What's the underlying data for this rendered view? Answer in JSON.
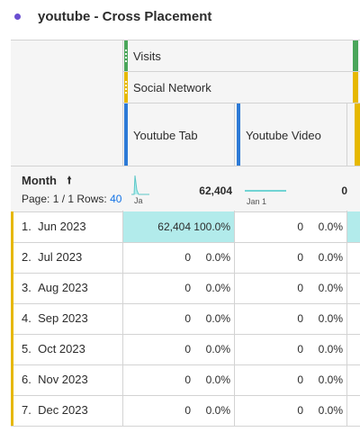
{
  "title": {
    "text": "youtube - Cross Placement",
    "dot_color": "#6a4fd1"
  },
  "header": {
    "metric": {
      "label": "Visits",
      "color": "#4aa55a"
    },
    "dimension": {
      "label": "Social Network",
      "color": "#e6b800"
    },
    "columns": [
      {
        "label": "Youtube Tab",
        "color": "#2d7ad6"
      },
      {
        "label": "Youtube Video",
        "color": "#2d7ad6"
      }
    ]
  },
  "summary": {
    "month_label": "Month",
    "sort_icon": "arrow-up-icon",
    "page_info": "Page: 1 / 1 Rows:",
    "rows_value": "40",
    "col1": {
      "spark_label": "Ja",
      "total": "62,404"
    },
    "col2": {
      "spark_label": "Jan 1",
      "total": "0"
    }
  },
  "rows": [
    {
      "index": "1.",
      "month": "Jun 2023",
      "c1_val": "62,404",
      "c1_pct": "100.0%",
      "c2_val": "0",
      "c2_pct": "0.0%"
    },
    {
      "index": "2.",
      "month": "Jul 2023",
      "c1_val": "0",
      "c1_pct": "0.0%",
      "c2_val": "0",
      "c2_pct": "0.0%"
    },
    {
      "index": "3.",
      "month": "Aug 2023",
      "c1_val": "0",
      "c1_pct": "0.0%",
      "c2_val": "0",
      "c2_pct": "0.0%"
    },
    {
      "index": "4.",
      "month": "Sep 2023",
      "c1_val": "0",
      "c1_pct": "0.0%",
      "c2_val": "0",
      "c2_pct": "0.0%"
    },
    {
      "index": "5.",
      "month": "Oct 2023",
      "c1_val": "0",
      "c1_pct": "0.0%",
      "c2_val": "0",
      "c2_pct": "0.0%"
    },
    {
      "index": "6.",
      "month": "Nov 2023",
      "c1_val": "0",
      "c1_pct": "0.0%",
      "c2_val": "0",
      "c2_pct": "0.0%"
    },
    {
      "index": "7.",
      "month": "Dec 2023",
      "c1_val": "0",
      "c1_pct": "0.0%",
      "c2_val": "0",
      "c2_pct": "0.0%"
    }
  ]
}
